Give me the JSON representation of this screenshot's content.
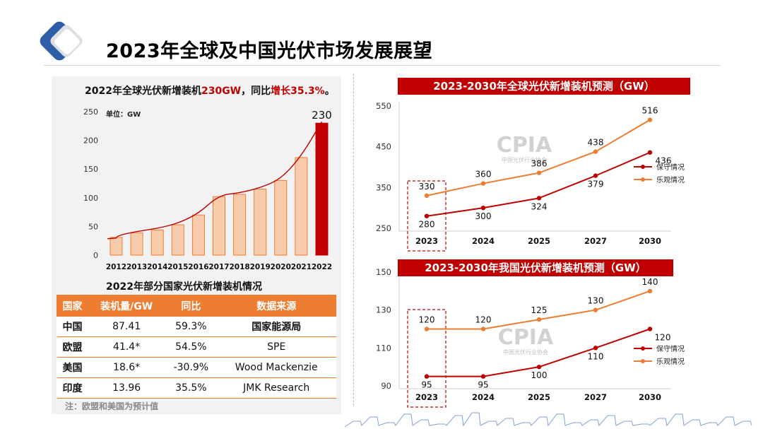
{
  "page": {
    "title": "2023年全球及中国光伏市场发展展望",
    "note": "注：欧盟和美国为预计值",
    "colors": {
      "accent_red": "#c00000",
      "accent_orange": "#ed7d31",
      "logo_blue": "#2e5ea8"
    }
  },
  "left": {
    "headline_a": "2022年全球光伏新增装机",
    "headline_b": "230GW",
    "headline_c": "，同比",
    "headline_d": "增长35.3%",
    "headline_e": "。",
    "unit_label": "单位：GW",
    "table_title": "2022年部分国家光伏新增装机情况",
    "table": {
      "headers": [
        "国家",
        "装机量/GW",
        "同比",
        "数据来源"
      ],
      "rows": [
        [
          "中国",
          "87.41",
          "59.3%",
          "国家能源局"
        ],
        [
          "欧盟",
          "41.4*",
          "54.5%",
          "SPE"
        ],
        [
          "美国",
          "18.6*",
          "-30.9%",
          "Wood Mackenzie"
        ],
        [
          "印度",
          "13.96",
          "35.5%",
          "JMK Research"
        ]
      ]
    }
  },
  "chart_data": [
    {
      "type": "bar",
      "title": "",
      "categories": [
        "2012",
        "2013",
        "2014",
        "2015",
        "2016",
        "2017",
        "2018",
        "2019",
        "2020",
        "2021",
        "2022"
      ],
      "values": [
        31,
        39,
        44,
        53,
        70,
        102,
        106,
        115,
        130,
        170,
        230
      ],
      "data_labels": {
        "2022": "230"
      },
      "ylim": [
        0,
        250
      ],
      "yticks": [
        "0",
        "50",
        "100",
        "150",
        "200",
        "250"
      ],
      "grid": false,
      "colors": {
        "bar": "#f8cbad",
        "bar_border": "#ed7d31",
        "highlight": "#c00000",
        "trend": "#c00000"
      }
    },
    {
      "type": "line",
      "title": "2023-2030年全球光伏新增装机预测（GW）",
      "categories": [
        "2023",
        "2024",
        "2025",
        "2027",
        "2030"
      ],
      "series": [
        {
          "name": "保守情况",
          "values": [
            280,
            300,
            324,
            379,
            436
          ],
          "color": "#c00000"
        },
        {
          "name": "乐观情况",
          "values": [
            330,
            360,
            386,
            438,
            516
          ],
          "color": "#ed7d31"
        }
      ],
      "ylim": [
        250,
        550
      ],
      "yticks": [
        "250",
        "350",
        "450",
        "550"
      ],
      "legend": "right",
      "watermark": "CPIA",
      "watermark_sub": "中国光伏行业协会"
    },
    {
      "type": "line",
      "title": "2023-2030年我国光伏新增装机预测（GW）",
      "categories": [
        "2023",
        "2024",
        "2025",
        "2027",
        "2030"
      ],
      "series": [
        {
          "name": "保守情况",
          "values": [
            95,
            95,
            100,
            110,
            120
          ],
          "color": "#c00000"
        },
        {
          "name": "乐观情况",
          "values": [
            120,
            120,
            125,
            130,
            140
          ],
          "color": "#ed7d31"
        }
      ],
      "ylim": [
        90,
        150
      ],
      "yticks": [
        "90",
        "110",
        "130",
        "150"
      ],
      "legend": "right",
      "watermark": "CPIA",
      "watermark_sub": "中国光伏行业协会"
    }
  ]
}
